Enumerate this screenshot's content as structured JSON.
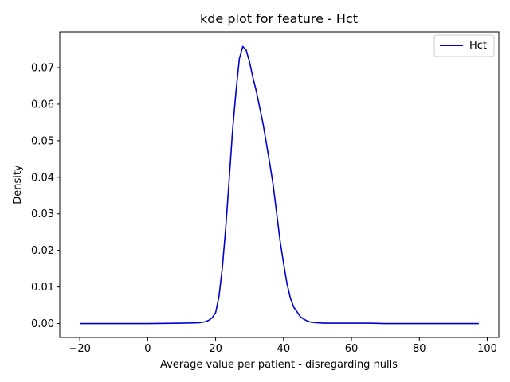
{
  "chart_data": {
    "type": "line",
    "title": "kde plot for feature -  Hct",
    "xlabel": "Average value per patient - disregarding nulls",
    "ylabel": "Density",
    "xlim": [
      -25.9,
      103.4
    ],
    "ylim": [
      -0.0038,
      0.0798
    ],
    "xticks": [
      -20,
      0,
      20,
      40,
      60,
      80,
      100
    ],
    "xtick_labels": [
      "−20",
      "0",
      "20",
      "40",
      "60",
      "80",
      "100"
    ],
    "yticks": [
      0.0,
      0.01,
      0.02,
      0.03,
      0.04,
      0.05,
      0.06,
      0.07
    ],
    "ytick_labels": [
      "0.00",
      "0.01",
      "0.02",
      "0.03",
      "0.04",
      "0.05",
      "0.06",
      "0.07"
    ],
    "grid": false,
    "legend_position": "top-right",
    "colors": {
      "series": "#0000cc",
      "axes": "#000000",
      "legend_border": "#cccccc"
    },
    "series": [
      {
        "name": "Hct",
        "x": [
          -20,
          -10,
          0,
          10,
          15,
          17,
          18,
          19,
          20,
          21,
          22,
          23,
          24,
          25,
          26,
          27,
          28,
          29,
          30,
          31,
          32,
          33,
          34,
          35,
          36,
          37,
          38,
          39,
          40,
          41,
          42,
          43,
          44,
          45,
          46,
          47,
          48,
          49,
          50,
          52,
          55,
          60,
          65,
          70,
          80,
          90,
          97.5
        ],
        "y": [
          0.0,
          0.0,
          0.0,
          0.0001,
          0.0002,
          0.0005,
          0.0009,
          0.0016,
          0.003,
          0.0075,
          0.0155,
          0.0265,
          0.0395,
          0.053,
          0.0635,
          0.0725,
          0.0758,
          0.0748,
          0.0715,
          0.0672,
          0.0635,
          0.059,
          0.0545,
          0.049,
          0.0435,
          0.0375,
          0.03,
          0.0225,
          0.0165,
          0.011,
          0.007,
          0.0045,
          0.0032,
          0.0018,
          0.0012,
          0.0007,
          0.0004,
          0.0003,
          0.0002,
          0.0001,
          0.0001,
          0.0001,
          0.0001,
          0.0,
          0.0,
          0.0,
          0.0
        ]
      }
    ]
  }
}
